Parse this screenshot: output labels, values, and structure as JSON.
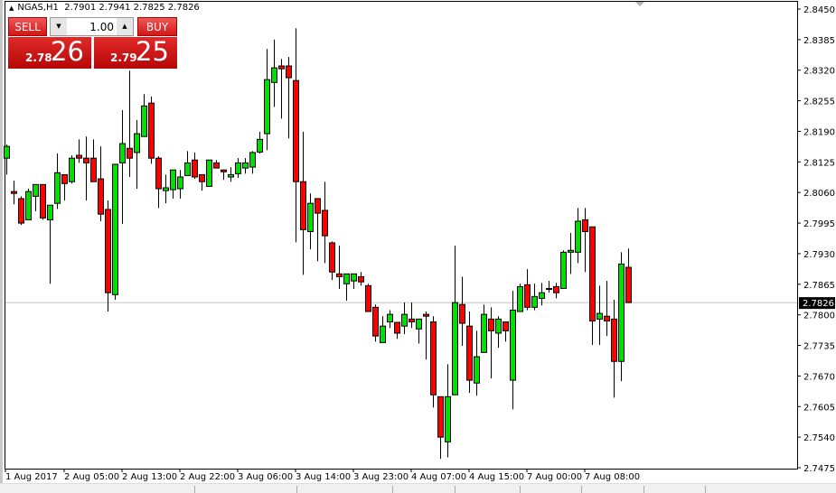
{
  "header": {
    "symbol": "NGAS,H1",
    "open": "2.7901",
    "high": "2.7941",
    "low": "2.7825",
    "close": "2.7826"
  },
  "trade_panel": {
    "sell_label": "SELL",
    "buy_label": "BUY",
    "volume": "1.00",
    "sell_price_small": "2.78",
    "sell_price_big": "26",
    "buy_price_small": "2.79",
    "buy_price_big": "25"
  },
  "colors": {
    "bull": "#00e000",
    "bear": "#ff0000",
    "bid_line": "#c0c0c0",
    "background": "#ffffff"
  },
  "chart_data": {
    "type": "candlestick",
    "timeframe": "H1",
    "ylim": [
      2.7475,
      2.845
    ],
    "y_ticks": [
      "2.8450",
      "2.8385",
      "2.8320",
      "2.8255",
      "2.8190",
      "2.8125",
      "2.8060",
      "2.7995",
      "2.7930",
      "2.7865",
      "2.7800",
      "2.7735",
      "2.7670",
      "2.7605",
      "2.7540",
      "2.7475"
    ],
    "x_ticks": [
      {
        "bar": 0,
        "label": "1 Aug 2017"
      },
      {
        "bar": 8,
        "label": "2 Aug 05:00"
      },
      {
        "bar": 16,
        "label": "2 Aug 13:00"
      },
      {
        "bar": 24,
        "label": "2 Aug 22:00"
      },
      {
        "bar": 32,
        "label": "3 Aug 06:00"
      },
      {
        "bar": 40,
        "label": "3 Aug 14:00"
      },
      {
        "bar": 48,
        "label": "3 Aug 23:00"
      },
      {
        "bar": 56,
        "label": "4 Aug 07:00"
      },
      {
        "bar": 64,
        "label": "4 Aug 15:00"
      },
      {
        "bar": 72,
        "label": "7 Aug 00:00"
      },
      {
        "bar": 80,
        "label": "7 Aug 08:00"
      }
    ],
    "bid_price": "2.7826",
    "ohlc": [
      [
        2.8133,
        2.8162,
        2.8098,
        2.8158
      ],
      [
        2.8062,
        2.8085,
        2.8035,
        2.8058
      ],
      [
        2.8047,
        2.8052,
        2.7991,
        2.7995
      ],
      [
        2.8002,
        2.8068,
        2.8002,
        2.8062
      ],
      [
        2.8052,
        2.8077,
        2.802,
        2.8077
      ],
      [
        2.8077,
        2.8077,
        2.8002,
        2.8006
      ],
      [
        2.8002,
        2.8033,
        2.7866,
        2.8033
      ],
      [
        2.8037,
        2.8143,
        2.8025,
        2.8102
      ],
      [
        2.8098,
        2.8098,
        2.8043,
        2.8079
      ],
      [
        2.8083,
        2.8139,
        2.8079,
        2.8133
      ],
      [
        2.8139,
        2.8173,
        2.8123,
        2.8133
      ],
      [
        2.8133,
        2.8179,
        2.8043,
        2.8123
      ],
      [
        2.8133,
        2.8173,
        2.8083,
        2.8083
      ],
      [
        2.8089,
        2.8158,
        2.7999,
        2.8014
      ],
      [
        2.8024,
        2.8043,
        2.7807,
        2.7847
      ],
      [
        2.7843,
        2.812,
        2.7832,
        2.812
      ],
      [
        2.8123,
        2.8235,
        2.7993,
        2.8164
      ],
      [
        2.8154,
        2.8319,
        2.8093,
        2.8133
      ],
      [
        2.8145,
        2.8214,
        2.8068,
        2.8185
      ],
      [
        2.8179,
        2.8269,
        2.8179,
        2.8244
      ],
      [
        2.825,
        2.8264,
        2.8121,
        2.8133
      ],
      [
        2.8133,
        2.8137,
        2.8027,
        2.8068
      ],
      [
        2.8064,
        2.8098,
        2.8037,
        2.807
      ],
      [
        2.8066,
        2.8108,
        2.8047,
        2.8108
      ],
      [
        2.8068,
        2.8108,
        2.8047,
        2.8093
      ],
      [
        2.8096,
        2.8148,
        2.8096,
        2.8123
      ],
      [
        2.8129,
        2.8145,
        2.8089,
        2.8093
      ],
      [
        2.8098,
        2.8098,
        2.8064,
        2.8083
      ],
      [
        2.8073,
        2.8129,
        2.8073,
        2.8129
      ],
      [
        2.8123,
        2.8129,
        2.8112,
        2.8112
      ],
      [
        2.8108,
        2.8108,
        2.8087,
        2.8104
      ],
      [
        2.8093,
        2.8114,
        2.8083,
        2.8098
      ],
      [
        2.81,
        2.8133,
        2.8091,
        2.8123
      ],
      [
        2.8112,
        2.8133,
        2.81,
        2.8123
      ],
      [
        2.8114,
        2.8148,
        2.81,
        2.8145
      ],
      [
        2.8146,
        2.8189,
        2.8143,
        2.8173
      ],
      [
        2.8185,
        2.8365,
        2.815,
        2.83
      ],
      [
        2.8294,
        2.8385,
        2.8242,
        2.8325
      ],
      [
        2.8329,
        2.8344,
        2.8217,
        2.8323
      ],
      [
        2.8329,
        2.8348,
        2.8175,
        2.8304
      ],
      [
        2.8298,
        2.8409,
        2.7954,
        2.8083
      ],
      [
        2.8083,
        2.8189,
        2.7885,
        2.7981
      ],
      [
        2.7977,
        2.8058,
        2.7939,
        2.8037
      ],
      [
        2.8047,
        2.8047,
        2.7914,
        2.8016
      ],
      [
        2.8022,
        2.8083,
        2.791,
        2.7968
      ],
      [
        2.7953,
        2.7956,
        2.7874,
        2.7891
      ],
      [
        2.7887,
        2.7947,
        2.7855,
        2.7881
      ],
      [
        2.7866,
        2.7887,
        2.783,
        2.7887
      ],
      [
        2.7872,
        2.7887,
        2.7855,
        2.7887
      ],
      [
        2.7881,
        2.7891,
        2.7862,
        2.787
      ],
      [
        2.7862,
        2.7866,
        2.7807,
        2.7807
      ],
      [
        2.7816,
        2.7822,
        2.7743,
        2.7755
      ],
      [
        2.7741,
        2.7797,
        2.7741,
        2.7776
      ],
      [
        2.7785,
        2.781,
        2.7772,
        2.7801
      ],
      [
        2.7784,
        2.7784,
        2.7749,
        2.7761
      ],
      [
        2.7776,
        2.7826,
        2.7759,
        2.7801
      ],
      [
        2.7791,
        2.7826,
        2.7772,
        2.7785
      ],
      [
        2.777,
        2.7791,
        2.7739,
        2.7791
      ],
      [
        2.7801,
        2.7807,
        2.7705,
        2.7797
      ],
      [
        2.7785,
        2.7797,
        2.7603,
        2.763
      ],
      [
        2.7626,
        2.7626,
        2.7494,
        2.754
      ],
      [
        2.753,
        2.7695,
        2.7497,
        2.7626
      ],
      [
        2.763,
        2.7947,
        2.763,
        2.7826
      ],
      [
        2.7822,
        2.7881,
        2.7734,
        2.7782
      ],
      [
        2.7776,
        2.7807,
        2.7634,
        2.7661
      ],
      [
        2.7655,
        2.7766,
        2.7628,
        2.7711
      ],
      [
        2.772,
        2.7822,
        2.772,
        2.7801
      ],
      [
        2.7791,
        2.7816,
        2.7665,
        2.7766
      ],
      [
        2.7761,
        2.7797,
        2.773,
        2.7791
      ],
      [
        2.7785,
        2.7785,
        2.7743,
        2.7766
      ],
      [
        2.7661,
        2.7851,
        2.7599,
        2.781
      ],
      [
        2.7807,
        2.7866,
        2.7807,
        2.786
      ],
      [
        2.7864,
        2.7897,
        2.781,
        2.7816
      ],
      [
        2.7816,
        2.7866,
        2.781,
        2.7839
      ],
      [
        2.7835,
        2.7868,
        2.782,
        2.7847
      ],
      [
        2.7856,
        2.7872,
        2.7847,
        2.7856
      ],
      [
        2.786,
        2.7868,
        2.7835,
        2.7847
      ],
      [
        2.7856,
        2.7937,
        2.7856,
        2.7933
      ],
      [
        2.7933,
        2.7974,
        2.7887,
        2.7937
      ],
      [
        2.7933,
        2.8027,
        2.791,
        2.7999
      ],
      [
        2.8002,
        2.8027,
        2.7891,
        2.7977
      ],
      [
        2.7987,
        2.7987,
        2.7736,
        2.7787
      ],
      [
        2.7791,
        2.7862,
        2.7736,
        2.7803
      ],
      [
        2.7797,
        2.7872,
        2.7755,
        2.7787
      ],
      [
        2.7791,
        2.7832,
        2.7624,
        2.7701
      ],
      [
        2.7701,
        2.7933,
        2.7659,
        2.7908
      ],
      [
        2.7901,
        2.7941,
        2.7825,
        2.7826
      ]
    ]
  }
}
